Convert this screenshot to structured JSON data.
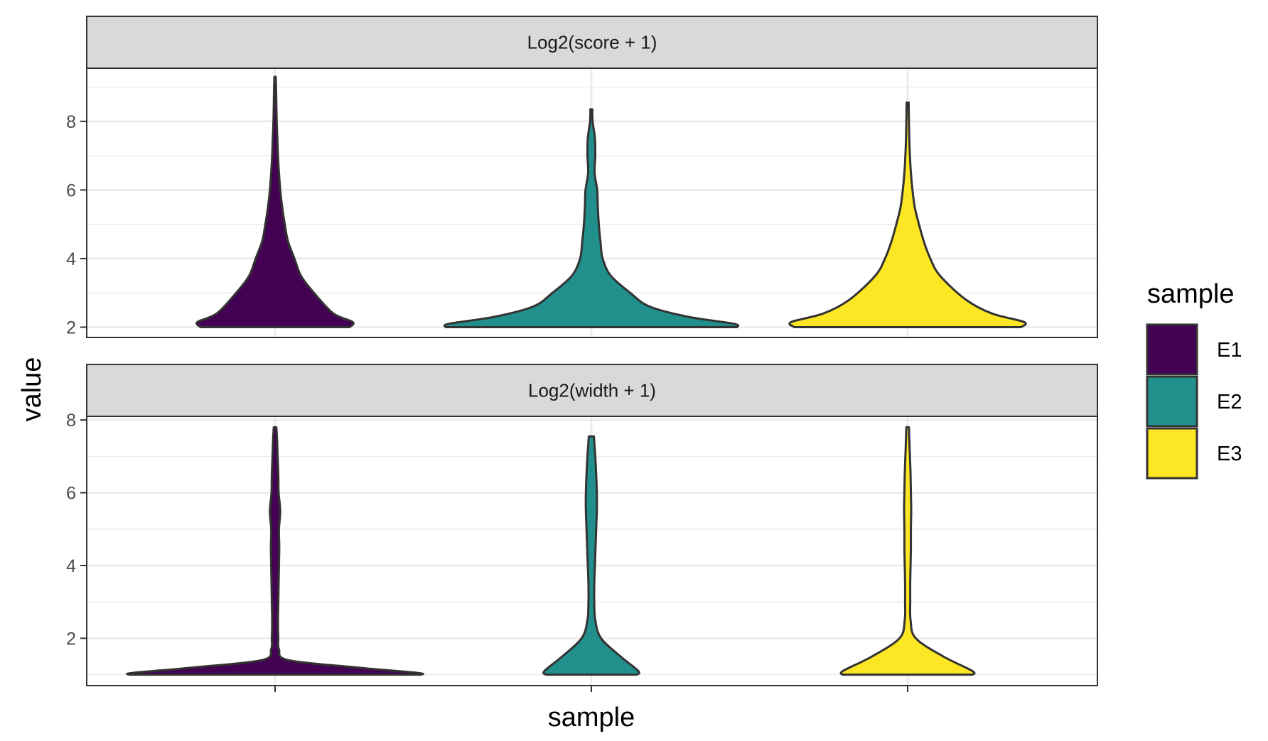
{
  "chart_data": {
    "type": "violin",
    "xlabel": "sample",
    "ylabel": "value",
    "legend": {
      "title": "sample",
      "placement": "right"
    },
    "categories": [
      "E1",
      "E2",
      "E3"
    ],
    "colors": {
      "E1": "#440154",
      "E2": "#21908C",
      "E3": "#FDE725"
    },
    "grid": true,
    "facets": [
      {
        "title": "Log2(score + 1)",
        "ylim": [
          1.7,
          9.55
        ],
        "yticks": [
          2,
          4,
          6,
          8
        ],
        "series": [
          {
            "name": "E1",
            "min": 2.0,
            "max": 9.3,
            "profile": [
              [
                2.0,
                0.23
              ],
              [
                2.15,
                0.24
              ],
              [
                2.4,
                0.18
              ],
              [
                3.0,
                0.12
              ],
              [
                3.5,
                0.08
              ],
              [
                4.0,
                0.06
              ],
              [
                4.5,
                0.04
              ],
              [
                5.0,
                0.03
              ],
              [
                5.5,
                0.022
              ],
              [
                6.0,
                0.016
              ],
              [
                6.5,
                0.012
              ],
              [
                7.0,
                0.009
              ],
              [
                7.5,
                0.007
              ],
              [
                8.0,
                0.005
              ],
              [
                8.5,
                0.004
              ],
              [
                9.0,
                0.003
              ],
              [
                9.3,
                0.002
              ]
            ]
          },
          {
            "name": "E2",
            "min": 2.0,
            "max": 8.35,
            "profile": [
              [
                2.0,
                0.45
              ],
              [
                2.1,
                0.44
              ],
              [
                2.3,
                0.3
              ],
              [
                2.6,
                0.18
              ],
              [
                3.0,
                0.12
              ],
              [
                3.5,
                0.06
              ],
              [
                4.0,
                0.035
              ],
              [
                4.5,
                0.028
              ],
              [
                5.0,
                0.023
              ],
              [
                5.5,
                0.02
              ],
              [
                6.0,
                0.018
              ],
              [
                6.5,
                0.01
              ],
              [
                7.0,
                0.012
              ],
              [
                7.5,
                0.011
              ],
              [
                8.0,
                0.004
              ],
              [
                8.35,
                0.003
              ]
            ]
          },
          {
            "name": "E3",
            "min": 2.0,
            "max": 8.55,
            "profile": [
              [
                2.0,
                0.35
              ],
              [
                2.15,
                0.36
              ],
              [
                2.4,
                0.26
              ],
              [
                2.8,
                0.18
              ],
              [
                3.5,
                0.1
              ],
              [
                4.0,
                0.07
              ],
              [
                4.5,
                0.05
              ],
              [
                5.0,
                0.035
              ],
              [
                5.5,
                0.022
              ],
              [
                6.0,
                0.015
              ],
              [
                6.5,
                0.01
              ],
              [
                7.0,
                0.007
              ],
              [
                7.5,
                0.005
              ],
              [
                8.0,
                0.004
              ],
              [
                8.55,
                0.003
              ]
            ]
          }
        ]
      },
      {
        "title": "Log2(width + 1)",
        "ylim": [
          0.7,
          8.1
        ],
        "yticks": [
          2,
          4,
          6,
          8
        ],
        "series": [
          {
            "name": "E1",
            "min": 1.0,
            "max": 7.8,
            "profile": [
              [
                1.0,
                0.45
              ],
              [
                1.05,
                0.44
              ],
              [
                1.2,
                0.25
              ],
              [
                1.4,
                0.04
              ],
              [
                1.7,
                0.012
              ],
              [
                2.0,
                0.01
              ],
              [
                2.5,
                0.009
              ],
              [
                3.0,
                0.01
              ],
              [
                3.5,
                0.011
              ],
              [
                4.0,
                0.012
              ],
              [
                4.5,
                0.013
              ],
              [
                5.0,
                0.012
              ],
              [
                5.5,
                0.016
              ],
              [
                6.0,
                0.011
              ],
              [
                6.5,
                0.01
              ],
              [
                7.0,
                0.008
              ],
              [
                7.5,
                0.006
              ],
              [
                7.8,
                0.004
              ]
            ]
          },
          {
            "name": "E2",
            "min": 1.0,
            "max": 7.55,
            "profile": [
              [
                1.0,
                0.14
              ],
              [
                1.1,
                0.145
              ],
              [
                1.5,
                0.09
              ],
              [
                2.0,
                0.03
              ],
              [
                2.5,
                0.012
              ],
              [
                3.0,
                0.009
              ],
              [
                3.5,
                0.009
              ],
              [
                4.0,
                0.011
              ],
              [
                4.5,
                0.013
              ],
              [
                5.0,
                0.015
              ],
              [
                5.5,
                0.017
              ],
              [
                6.0,
                0.017
              ],
              [
                6.5,
                0.015
              ],
              [
                7.0,
                0.012
              ],
              [
                7.55,
                0.008
              ]
            ]
          },
          {
            "name": "E3",
            "min": 1.0,
            "max": 7.8,
            "profile": [
              [
                1.0,
                0.2
              ],
              [
                1.1,
                0.2
              ],
              [
                1.5,
                0.11
              ],
              [
                2.0,
                0.025
              ],
              [
                2.5,
                0.009
              ],
              [
                3.0,
                0.008
              ],
              [
                3.5,
                0.008
              ],
              [
                4.0,
                0.009
              ],
              [
                4.5,
                0.01
              ],
              [
                5.0,
                0.01
              ],
              [
                5.5,
                0.011
              ],
              [
                6.0,
                0.01
              ],
              [
                6.5,
                0.009
              ],
              [
                7.0,
                0.007
              ],
              [
                7.5,
                0.005
              ],
              [
                7.8,
                0.004
              ]
            ]
          }
        ]
      }
    ]
  }
}
